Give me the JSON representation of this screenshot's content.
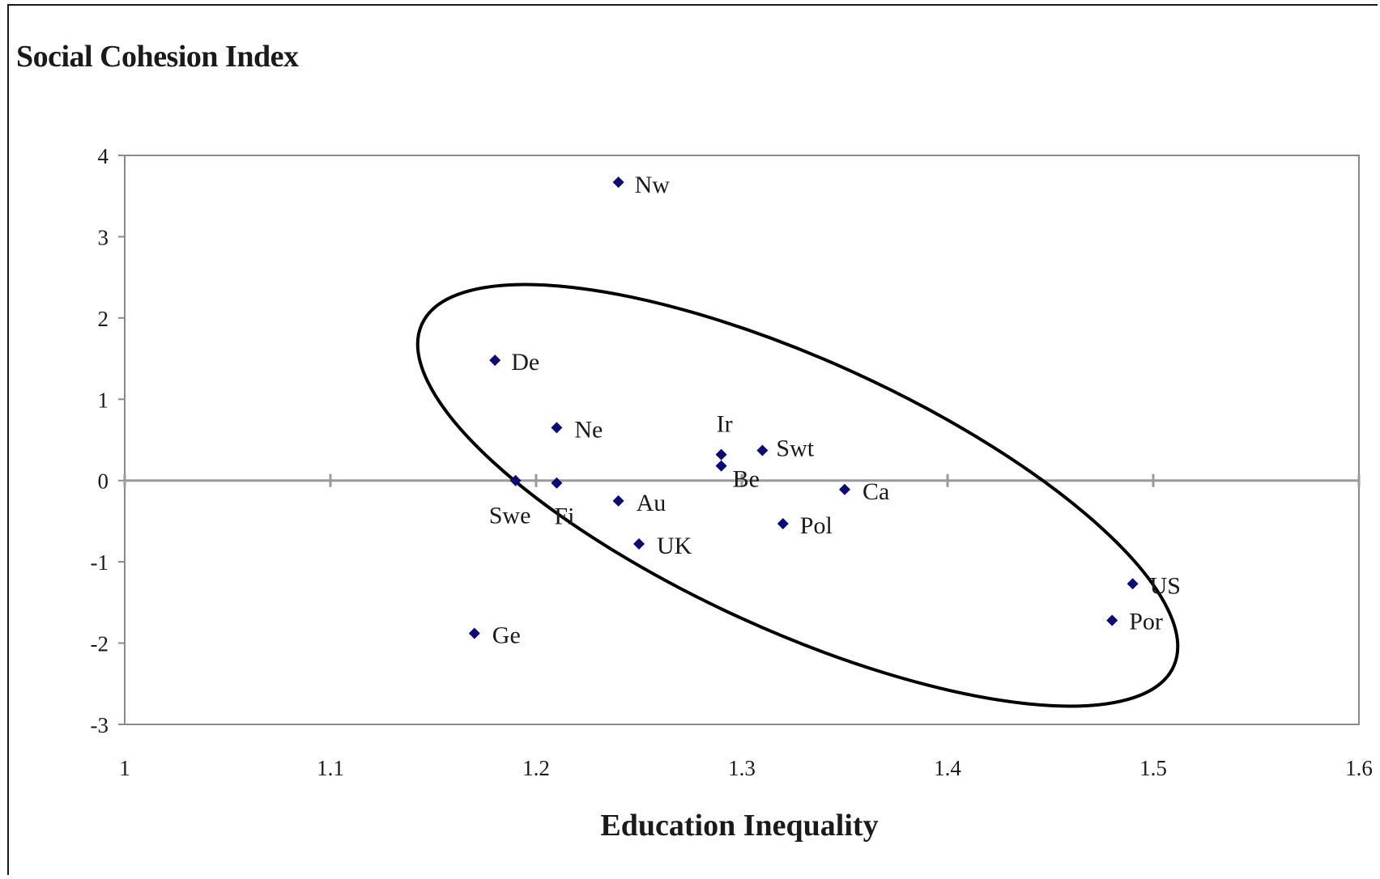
{
  "chart_data": {
    "type": "scatter",
    "title": "",
    "ylabel": "Social Cohesion Index",
    "xlabel": "Education Inequality",
    "xlim": [
      1,
      1.6
    ],
    "ylim": [
      -3,
      4
    ],
    "x_ticks": [
      "1",
      "1.1",
      "1.2",
      "1.3",
      "1.4",
      "1.5",
      "1.6"
    ],
    "y_ticks": [
      "4",
      "3",
      "2",
      "1",
      "0",
      "-1",
      "-2",
      "-3"
    ],
    "grid": false,
    "zero_line": true,
    "marker_color": "#0a0a7a",
    "points": [
      {
        "label": "Nw",
        "x": 1.24,
        "y": 3.67
      },
      {
        "label": "De",
        "x": 1.18,
        "y": 1.48
      },
      {
        "label": "Ne",
        "x": 1.21,
        "y": 0.65
      },
      {
        "label": "Ir",
        "x": 1.29,
        "y": 0.32
      },
      {
        "label": "Be",
        "x": 1.29,
        "y": 0.18
      },
      {
        "label": "Swt",
        "x": 1.31,
        "y": 0.37
      },
      {
        "label": "Swe",
        "x": 1.19,
        "y": 0.0
      },
      {
        "label": "Fi",
        "x": 1.21,
        "y": -0.03
      },
      {
        "label": "Au",
        "x": 1.24,
        "y": -0.25
      },
      {
        "label": "UK",
        "x": 1.25,
        "y": -0.78
      },
      {
        "label": "Ca",
        "x": 1.35,
        "y": -0.11
      },
      {
        "label": "Pol",
        "x": 1.32,
        "y": -0.53
      },
      {
        "label": "US",
        "x": 1.49,
        "y": -1.27
      },
      {
        "label": "Por",
        "x": 1.48,
        "y": -1.72
      },
      {
        "label": "Ge",
        "x": 1.17,
        "y": -1.88
      }
    ],
    "annotations": [
      {
        "type": "ellipse",
        "description": "hand-drawn ellipse enclosing the main cluster from De to US/Por"
      }
    ]
  }
}
